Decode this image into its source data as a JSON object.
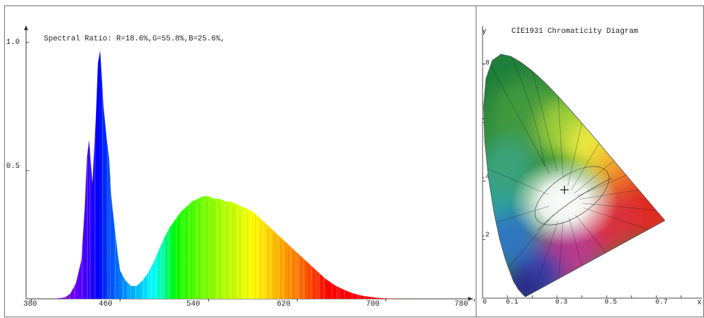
{
  "chart_data": [
    {
      "type": "area",
      "title": "Spectral Ratio:  R=18.6%,G=55.8%,B=25.6%,",
      "xlabel": "",
      "ylabel": "",
      "xlim": [
        380,
        780
      ],
      "ylim": [
        0,
        1.0
      ],
      "x_ticks": [
        "380",
        "460",
        "540",
        "620",
        "700",
        "780"
      ],
      "y_ticks": [
        "1.0",
        "0.5"
      ],
      "grid": false,
      "series": [
        {
          "x": [
            380,
            400,
            410,
            415,
            420,
            425,
            428,
            430,
            432,
            435,
            438,
            440,
            442,
            445,
            448,
            450,
            452,
            455,
            458,
            460,
            465,
            470,
            475,
            480,
            485,
            490,
            495,
            500,
            505,
            510,
            515,
            520,
            525,
            530,
            535,
            540,
            545,
            550,
            555,
            560,
            565,
            570,
            575,
            580,
            585,
            590,
            595,
            600,
            605,
            610,
            615,
            620,
            625,
            630,
            635,
            640,
            645,
            650,
            655,
            660,
            665,
            670,
            675,
            680,
            685,
            690,
            695,
            700,
            705,
            710,
            720,
            730,
            740,
            750,
            760,
            770,
            780
          ],
          "y": [
            0,
            0,
            0.005,
            0.02,
            0.06,
            0.15,
            0.35,
            0.55,
            0.62,
            0.45,
            0.7,
            0.92,
            0.97,
            0.75,
            0.62,
            0.55,
            0.4,
            0.28,
            0.17,
            0.11,
            0.07,
            0.05,
            0.05,
            0.07,
            0.1,
            0.14,
            0.19,
            0.24,
            0.28,
            0.31,
            0.34,
            0.36,
            0.38,
            0.39,
            0.4,
            0.4,
            0.39,
            0.39,
            0.38,
            0.38,
            0.37,
            0.36,
            0.35,
            0.34,
            0.32,
            0.3,
            0.28,
            0.26,
            0.24,
            0.22,
            0.2,
            0.18,
            0.16,
            0.14,
            0.12,
            0.1,
            0.08,
            0.065,
            0.05,
            0.04,
            0.03,
            0.022,
            0.016,
            0.011,
            0.008,
            0.005,
            0.003,
            0.002,
            0.001,
            0.0005,
            0.0002,
            0,
            0,
            0,
            0,
            0,
            0
          ]
        }
      ]
    },
    {
      "type": "scatter",
      "title": "CIE1931 Chromaticity Diagram",
      "xlabel": "x",
      "ylabel": "y",
      "xlim": [
        0,
        0.8
      ],
      "ylim": [
        0,
        0.85
      ],
      "x_ticks": [
        "0",
        "0.1",
        "0.3",
        "0.5",
        "0.7"
      ],
      "y_ticks": [
        ".8",
        ".6",
        ".4",
        ".2"
      ],
      "grid": false,
      "series": [
        {
          "x": [
            0.33
          ],
          "y": [
            0.37
          ]
        }
      ]
    }
  ]
}
